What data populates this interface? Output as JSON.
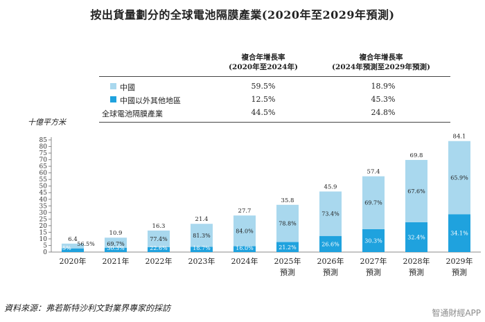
{
  "title": "按出貨量劃分的全球電池隔膜產業(2020年至2029年預測)",
  "cagr_table": {
    "col1_header_line1": "複合年增長率",
    "col1_header_line2": "(2020年至2024年)",
    "col2_header_line1": "複合年增長率",
    "col2_header_line2": "(2024年預測至2029年預測)",
    "rows": [
      {
        "label": "中國",
        "col1": "59.5%",
        "col2": "18.9%",
        "swatch": "#a9d8ee"
      },
      {
        "label": "中國以外其他地區",
        "col1": "12.5%",
        "col2": "45.3%",
        "swatch": "#1fa2de"
      },
      {
        "label": "全球電池隔膜產業",
        "col1": "44.5%",
        "col2": "24.8%",
        "swatch": ""
      }
    ]
  },
  "unit_label": "十億平方米",
  "forecast_label": "預測",
  "source": "資料來源：弗若斯特沙利文對業界專家的採訪",
  "watermark": "智通財經APP",
  "colors": {
    "china": "#a9d8ee",
    "rest": "#1fa2de",
    "axis": "#888888"
  },
  "chart_data": {
    "type": "bar",
    "stacked": true,
    "categories": [
      "2020年",
      "2021年",
      "2022年",
      "2023年",
      "2024年",
      "2025年",
      "2026年",
      "2027年",
      "2028年",
      "2029年"
    ],
    "forecast_from_index": 5,
    "totals": [
      6.4,
      10.9,
      16.3,
      21.4,
      27.7,
      35.8,
      45.9,
      57.4,
      69.8,
      84.1
    ],
    "series": [
      {
        "name": "中國以外其他地區",
        "share_labels": [
          "43.5%",
          "30.3%",
          "22.6%",
          "18.7%",
          "16.0%",
          "21.2%",
          "26.6%",
          "30.3%",
          "32.4%",
          "34.1%"
        ],
        "shares": [
          43.5,
          30.3,
          22.6,
          18.7,
          16.0,
          21.2,
          26.6,
          30.3,
          32.4,
          34.1
        ]
      },
      {
        "name": "中國",
        "share_labels": [
          "56.5%",
          "69.7%",
          "77.4%",
          "81.3%",
          "84.0%",
          "78.8%",
          "73.4%",
          "69.7%",
          "67.6%",
          "65.9%"
        ],
        "shares": [
          56.5,
          69.7,
          77.4,
          81.3,
          84.0,
          78.8,
          73.4,
          69.7,
          67.6,
          65.9
        ]
      }
    ],
    "y_ticks": [
      0,
      5,
      10,
      15,
      20,
      25,
      30,
      35,
      40,
      45,
      50,
      55,
      60,
      65,
      70,
      75,
      80,
      85
    ],
    "ylim": [
      0,
      85
    ],
    "ylabel": "十億平方米",
    "xlabel": ""
  }
}
